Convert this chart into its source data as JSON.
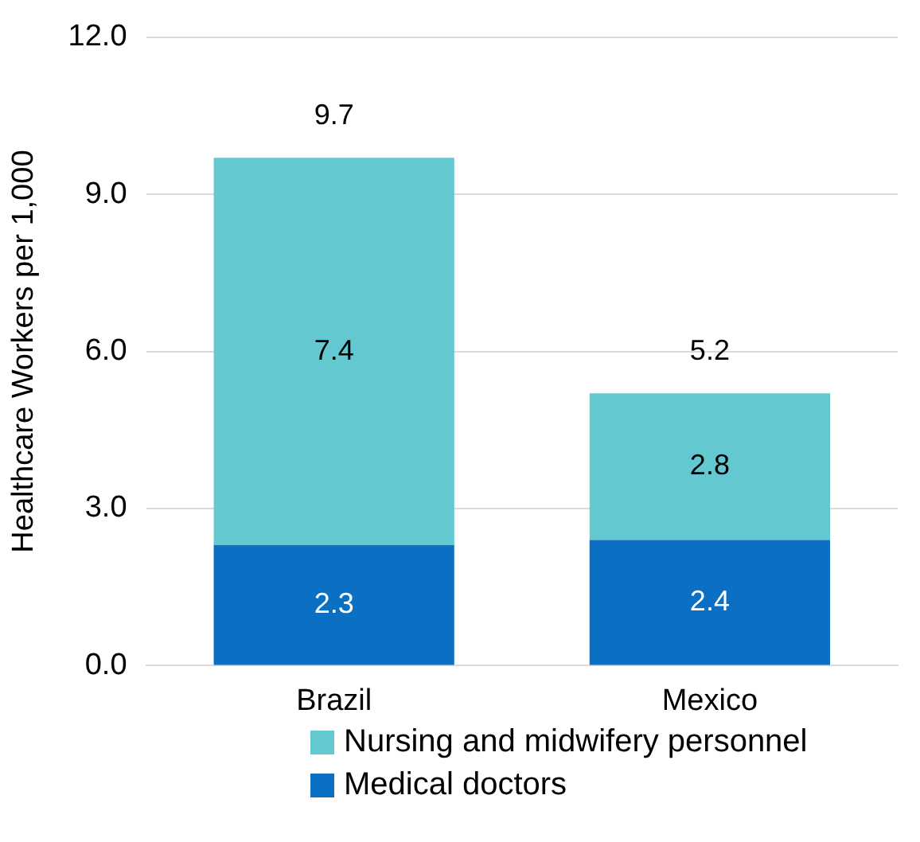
{
  "chart_data": {
    "type": "bar",
    "stacked": true,
    "ylabel": "Healthcare Workers per 1,000",
    "categories": [
      "Brazil",
      "Mexico"
    ],
    "series": [
      {
        "name": "Medical doctors",
        "color": "#0b6fc3",
        "values": [
          2.3,
          2.4
        ]
      },
      {
        "name": "Nursing and midwifery personnel",
        "color": "#63c8d0",
        "values": [
          7.4,
          2.8
        ]
      }
    ],
    "totals": [
      "9.7",
      "5.2"
    ],
    "data_labels": true,
    "ylim": [
      0,
      12
    ],
    "yticks": [
      {
        "value": 0,
        "label": "0.0"
      },
      {
        "value": 3,
        "label": "3.0"
      },
      {
        "value": 6,
        "label": "6.0"
      },
      {
        "value": 9,
        "label": "9.0"
      },
      {
        "value": 12,
        "label": "12.0"
      }
    ],
    "grid": "y",
    "legend": "bottom"
  }
}
